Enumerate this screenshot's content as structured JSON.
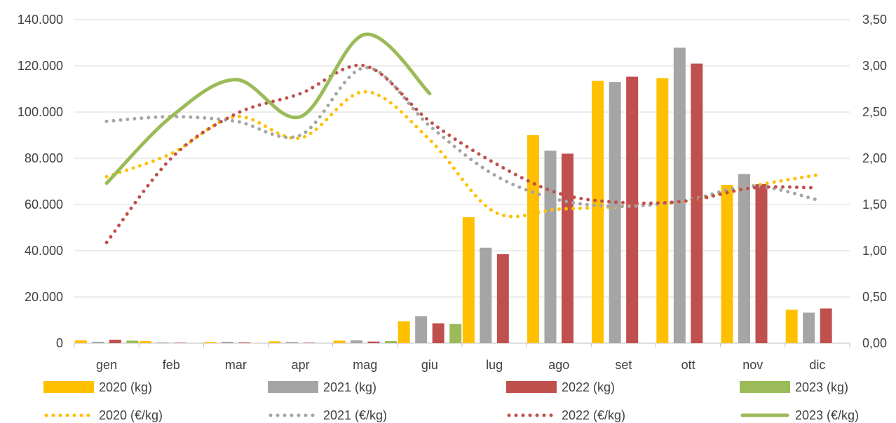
{
  "chart_data": {
    "type": "bar",
    "categories": [
      "gen",
      "feb",
      "mar",
      "apr",
      "mag",
      "giu",
      "lug",
      "ago",
      "set",
      "ott",
      "nov",
      "dic"
    ],
    "y_left": {
      "ticks": [
        "0",
        "20.000",
        "40.000",
        "60.000",
        "80.000",
        "100.000",
        "120.000",
        "140.000"
      ],
      "ylim": [
        0,
        140000
      ]
    },
    "y_right": {
      "ticks": [
        "0,00",
        "0,50",
        "1,00",
        "1,50",
        "2,00",
        "2,50",
        "3,00",
        "3,50"
      ],
      "ylim": [
        0,
        3.5
      ]
    },
    "grid": true,
    "legend_position": "bottom",
    "bar_series": [
      {
        "name": "2020 (kg)",
        "color": "#FFC000",
        "values": [
          1200,
          900,
          500,
          800,
          1100,
          9500,
          54500,
          90000,
          113500,
          114700,
          68500,
          14500
        ]
      },
      {
        "name": "2021 (kg)",
        "color": "#A5A5A5",
        "values": [
          600,
          300,
          600,
          500,
          1200,
          11700,
          41300,
          83300,
          113000,
          127900,
          73200,
          13200
        ]
      },
      {
        "name": "2022 (kg)",
        "color": "#C0504D",
        "values": [
          1500,
          200,
          300,
          200,
          700,
          8600,
          38500,
          82000,
          115300,
          121000,
          68800,
          15000
        ]
      },
      {
        "name": "2023 (kg)",
        "color": "#9BBB59",
        "values": [
          1100,
          0,
          0,
          0,
          900,
          8300,
          null,
          null,
          null,
          null,
          null,
          null
        ]
      }
    ],
    "line_series": [
      {
        "name": "2020 (€/kg)",
        "color": "#FFC000",
        "style": "dotted",
        "values": [
          1.8,
          2.05,
          2.45,
          2.22,
          2.72,
          2.2,
          1.42,
          1.45,
          1.48,
          1.54,
          1.7,
          1.82
        ]
      },
      {
        "name": "2021 (€/kg)",
        "color": "#A5A5A5",
        "style": "dotted",
        "values": [
          2.4,
          2.45,
          2.4,
          2.25,
          2.98,
          2.35,
          1.82,
          1.55,
          1.48,
          1.55,
          1.7,
          1.55
        ]
      },
      {
        "name": "2022 (€/kg)",
        "color": "#C0504D",
        "style": "dotted",
        "values": [
          1.09,
          2.0,
          2.48,
          2.7,
          3.0,
          2.4,
          1.95,
          1.62,
          1.52,
          1.54,
          1.68,
          1.68
        ]
      },
      {
        "name": "2023 (€/kg)",
        "color": "#9BBB59",
        "style": "solid",
        "values": [
          1.73,
          2.45,
          2.85,
          2.45,
          3.34,
          2.7,
          null,
          null,
          null,
          null,
          null,
          null
        ]
      }
    ]
  }
}
